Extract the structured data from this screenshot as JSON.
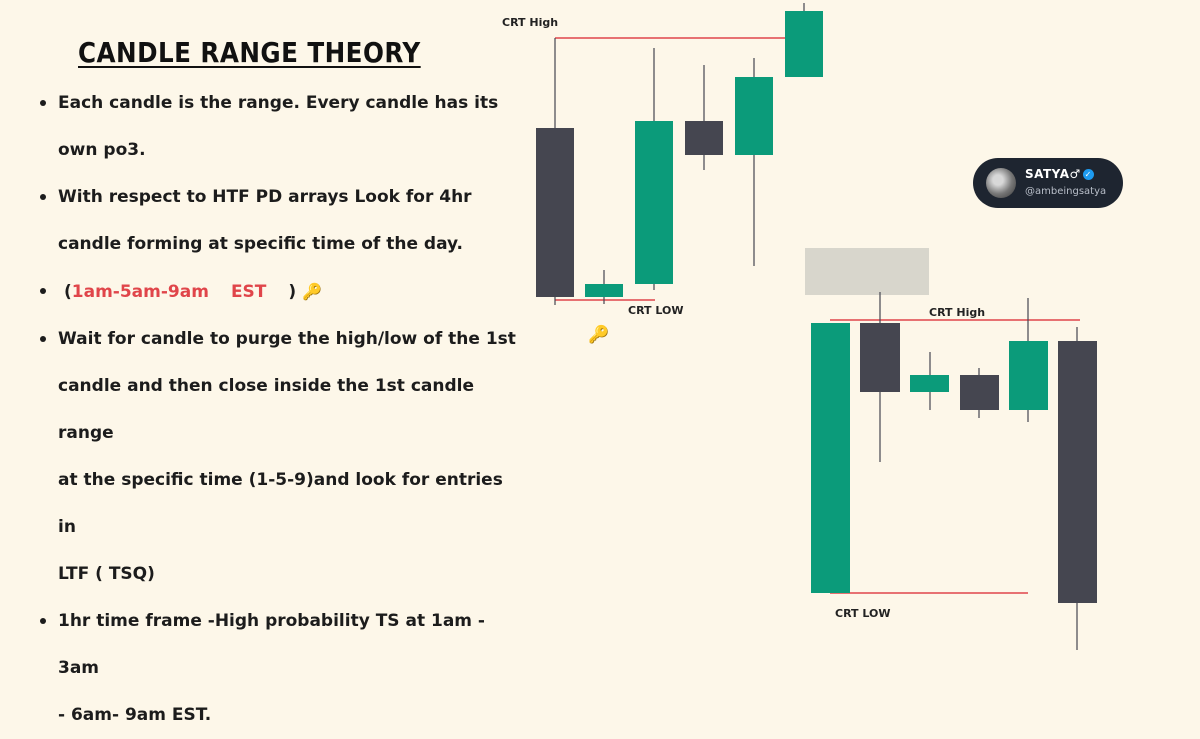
{
  "title": "CANDLE RANGE THEORY",
  "bullets": {
    "b1_l1": "Each candle is the range. Every candle has its",
    "b1_l2": "own po3.",
    "b2_l1": "With respect to  HTF PD arrays Look for 4hr",
    "b2_l2": "candle forming at specific time of the day.",
    "b3_open": "(",
    "b3_red1": "1am-5am-9am",
    "b3_red2": "EST",
    "b3_close": ")",
    "b4_l1": "Wait for  candle to purge the high/low of the 1st",
    "b4_l2": "candle and then close inside the 1st candle range",
    "b4_l3": "at the specific time (1-5-9)and look for entries in",
    "b4_l4": "LTF ( TSQ)",
    "b5_l1": "1hr time frame -High probability TS at 1am - 3am",
    "b5_l2": "- 6am- 9am EST."
  },
  "key_icon": "key-icon",
  "diagram1": {
    "high_label": "CRT High",
    "low_label": "CRT LOW"
  },
  "diagram2": {
    "high_label": "CRT High",
    "low_label": "CRT LOW"
  },
  "handle": {
    "name": "SATYA♂",
    "username": "@ambeingsatya",
    "verified_icon": "verified-badge-icon"
  },
  "colors": {
    "bull": "#0b9b7a",
    "bear": "#454650",
    "level_line": "#e0454a",
    "gray_box": "#d8d6cc",
    "background": "#fdf7e9"
  }
}
